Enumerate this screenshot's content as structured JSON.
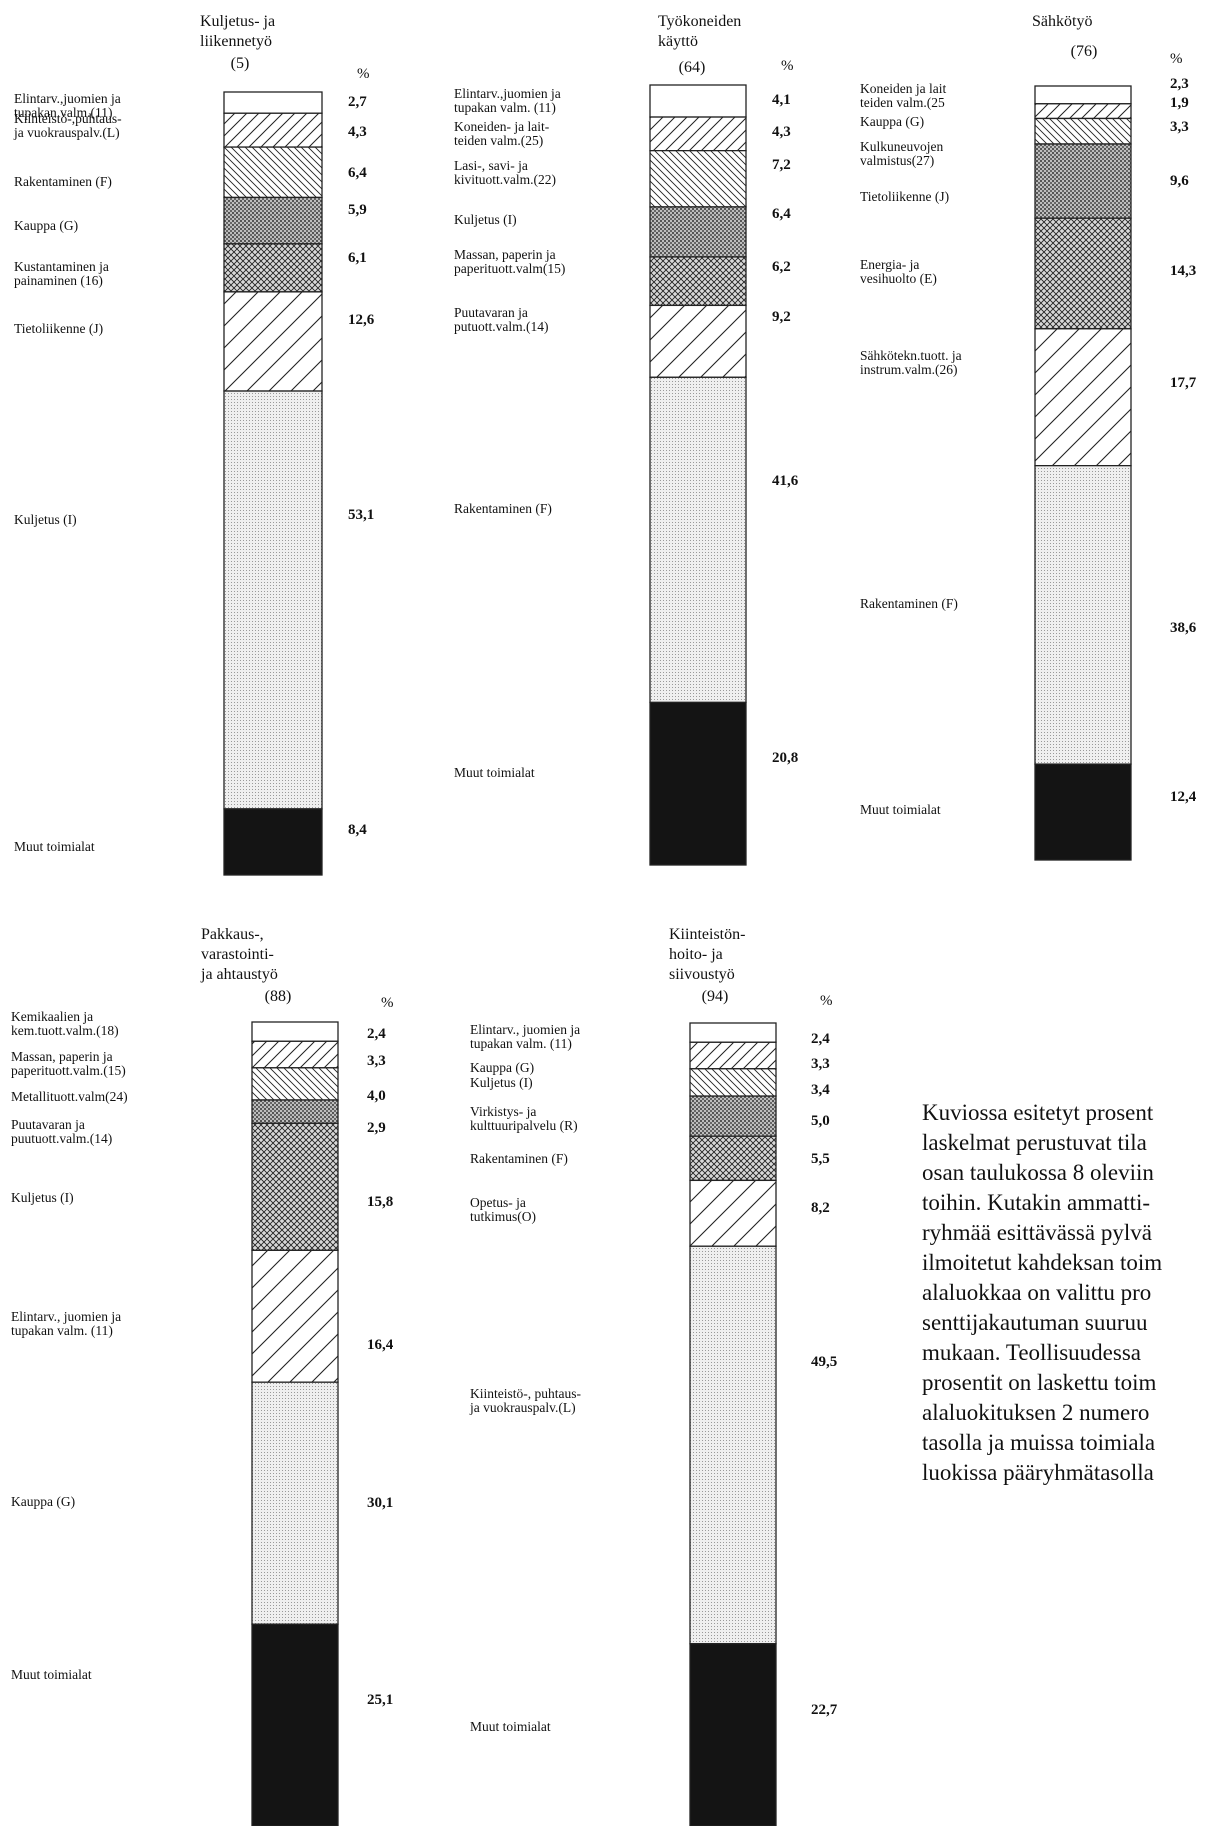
{
  "colors": {
    "ink": "#111111",
    "bar_border": "#222222",
    "dark_segment": "#141414"
  },
  "pct_symbol": "%",
  "note_text": "Kuviossa esitetyt prosent\nlaskelmat perustuvat tila\nosan taulukossa 8 oleviin\ntoihin. Kutakin ammatti-\nryhmää esittävässä pylvä\nilmoitetut kahdeksan toim\nalaluokkaa on valittu pro\nsenttijakautuman suuruu\nmukaan. Teollisuudessa \nprosentit on laskettu toim\nalaluokituksen 2 numero\ntasolla ja muissa toimiala\nluokissa pääryhmätasolla",
  "chart_data": [
    {
      "type": "stacked-bar",
      "title": "Kuljetus- ja\nliikennetyö",
      "code": "(5)",
      "unit": "%",
      "segments": [
        {
          "label": "Elintarv.,juomien ja\ntupakan valm.(11)",
          "value": 2.7,
          "value_text": "2,7",
          "pattern": "empty"
        },
        {
          "label": "Kiinteistö-,puhtaus-\nja vuokrauspalv.(L)",
          "value": 4.3,
          "value_text": "4,3",
          "pattern": "diag-right"
        },
        {
          "label": "Rakentaminen (F)",
          "value": 6.4,
          "value_text": "6,4",
          "pattern": "diag-left"
        },
        {
          "label": "Kauppa (G)",
          "value": 5.9,
          "value_text": "5,9",
          "pattern": "dots"
        },
        {
          "label": "Kustantaminen ja\npainaminen (16)",
          "value": 6.1,
          "value_text": "6,1",
          "pattern": "crosshatch"
        },
        {
          "label": "Tietoliikenne (J)",
          "value": 12.6,
          "value_text": "12,6",
          "pattern": "diag-right-wide"
        },
        {
          "label": "Kuljetus (I)",
          "value": 53.1,
          "value_text": "53,1",
          "pattern": "fine-dots"
        },
        {
          "label": "Muut toimialat",
          "value": 8.4,
          "value_text": "8,4",
          "pattern": "solid"
        }
      ]
    },
    {
      "type": "stacked-bar",
      "title": "Työkoneiden\nkäyttö",
      "code": "(64)",
      "unit": "%",
      "segments": [
        {
          "label": "Elintarv.,juomien ja\ntupakan valm. (11)",
          "value": 4.1,
          "value_text": "4,1",
          "pattern": "empty"
        },
        {
          "label": "Koneiden- ja lait-\nteiden valm.(25)",
          "value": 4.3,
          "value_text": "4,3",
          "pattern": "diag-right"
        },
        {
          "label": "Lasi-, savi- ja\nkivituott.valm.(22)",
          "value": 7.2,
          "value_text": "7,2",
          "pattern": "diag-left"
        },
        {
          "label": "Kuljetus (I)",
          "value": 6.4,
          "value_text": "6,4",
          "pattern": "dots"
        },
        {
          "label": "Massan, paperin ja\npaperituott.valm(15)",
          "value": 6.2,
          "value_text": "6,2",
          "pattern": "crosshatch"
        },
        {
          "label": "Puutavaran ja\nputuott.valm.(14)",
          "value": 9.2,
          "value_text": "9,2",
          "pattern": "diag-right-wide"
        },
        {
          "label": "Rakentaminen (F)",
          "value": 41.6,
          "value_text": "41,6",
          "pattern": "fine-dots"
        },
        {
          "label": "Muut toimialat",
          "value": 20.8,
          "value_text": "20,8",
          "pattern": "solid"
        }
      ]
    },
    {
      "type": "stacked-bar",
      "title": "Sähkötyö",
      "code": "(76)",
      "unit": "%",
      "segments": [
        {
          "label": "Koneiden ja lait\nteiden valm.(25",
          "value": 2.3,
          "value_text": "2,3",
          "pattern": "empty"
        },
        {
          "label": "Kauppa (G)",
          "value": 1.9,
          "value_text": "1,9",
          "pattern": "diag-right"
        },
        {
          "label": "Kulkuneuvojen\nvalmistus(27)",
          "value": 3.3,
          "value_text": "3,3",
          "pattern": "diag-left"
        },
        {
          "label": "Tietoliikenne (J)",
          "value": 9.6,
          "value_text": "9,6",
          "pattern": "dots"
        },
        {
          "label": "Energia- ja\nvesihuolto (E)",
          "value": 14.3,
          "value_text": "14,3",
          "pattern": "crosshatch"
        },
        {
          "label": "Sähkötekn.tuott. ja\ninstrum.valm.(26)",
          "value": 17.7,
          "value_text": "17,7",
          "pattern": "diag-right-wide"
        },
        {
          "label": "Rakentaminen (F)",
          "value": 38.6,
          "value_text": "38,6",
          "pattern": "fine-dots"
        },
        {
          "label": "Muut toimialat",
          "value": 12.4,
          "value_text": "12,4",
          "pattern": "solid"
        }
      ]
    },
    {
      "type": "stacked-bar",
      "title": "Pakkaus-,\nvarastointi-\nja ahtaustyö",
      "code": "(88)",
      "unit": "%",
      "segments": [
        {
          "label": "Kemikaalien ja\nkem.tuott.valm.(18)",
          "value": 2.4,
          "value_text": "2,4",
          "pattern": "empty"
        },
        {
          "label": "Massan, paperin ja\npaperituott.valm.(15)",
          "value": 3.3,
          "value_text": "3,3",
          "pattern": "diag-right"
        },
        {
          "label": "Metallituott.valm(24)",
          "value": 4.0,
          "value_text": "4,0",
          "pattern": "diag-left"
        },
        {
          "label": "Puutavaran ja\npuutuott.valm.(14)",
          "value": 2.9,
          "value_text": "2,9",
          "pattern": "dots"
        },
        {
          "label": "Kuljetus (I)",
          "value": 15.8,
          "value_text": "15,8",
          "pattern": "crosshatch"
        },
        {
          "label": "Elintarv., juomien ja\ntupakan valm. (11)",
          "value": 16.4,
          "value_text": "16,4",
          "pattern": "diag-right-wide"
        },
        {
          "label": "Kauppa (G)",
          "value": 30.1,
          "value_text": "30,1",
          "pattern": "fine-dots"
        },
        {
          "label": "Muut toimialat",
          "value": 25.1,
          "value_text": "25,1",
          "pattern": "solid"
        }
      ]
    },
    {
      "type": "stacked-bar",
      "title": "Kiinteistön-\nhoito- ja\nsiivoustyö",
      "code": "(94)",
      "unit": "%",
      "segments": [
        {
          "label": "Elintarv., juomien ja\ntupakan valm. (11)",
          "value": 2.4,
          "value_text": "2,4",
          "pattern": "empty"
        },
        {
          "label": "Kauppa (G)",
          "value": 3.3,
          "value_text": "3,3",
          "pattern": "diag-right"
        },
        {
          "label": "Kuljetus (I)",
          "value": 3.4,
          "value_text": "3,4",
          "pattern": "diag-left"
        },
        {
          "label": "Virkistys- ja\nkulttuuripalvelu (R)",
          "value": 5.0,
          "value_text": "5,0",
          "pattern": "dots"
        },
        {
          "label": "Rakentaminen (F)",
          "value": 5.5,
          "value_text": "5,5",
          "pattern": "crosshatch"
        },
        {
          "label": "Opetus- ja\ntutkimus(O)",
          "value": 8.2,
          "value_text": "8,2",
          "pattern": "diag-right-wide"
        },
        {
          "label": "Kiinteistö-, puhtaus-\nja vuokrauspalv.(L)",
          "value": 49.5,
          "value_text": "49,5",
          "pattern": "fine-dots"
        },
        {
          "label": "Muut toimialat",
          "value": 22.7,
          "value_text": "22,7",
          "pattern": "solid"
        }
      ]
    }
  ]
}
